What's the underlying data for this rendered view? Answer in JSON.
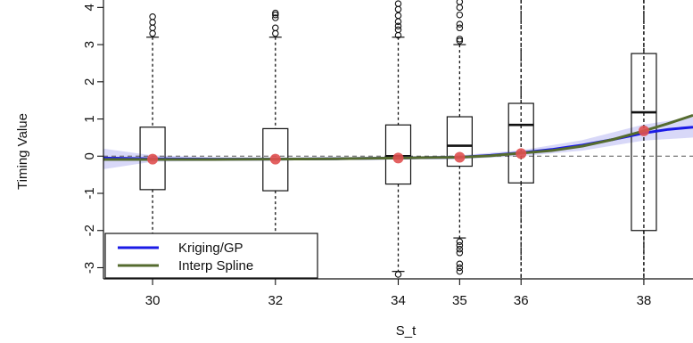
{
  "chart_data": {
    "type": "boxplot",
    "xlabel": "S_t",
    "ylabel": "Timing Value",
    "xlim": [
      29.2,
      38.8
    ],
    "ylim": [
      -3.3,
      4.2
    ],
    "x_ticks": [
      30,
      32,
      34,
      35,
      36,
      38
    ],
    "y_ticks": [
      -3,
      -2,
      -1,
      0,
      1,
      2,
      3,
      4
    ],
    "reference_line_y": 0,
    "vertical_reference_lines_x": [
      36,
      38
    ],
    "boxes": [
      {
        "x": 30,
        "q1": -0.9,
        "median": -0.08,
        "q3": 0.78,
        "whisker_low": -3.3,
        "whisker_high": 3.2,
        "outliers_high": [
          3.3,
          3.45,
          3.6,
          3.75
        ],
        "outliers_low": []
      },
      {
        "x": 32,
        "q1": -0.93,
        "median": -0.08,
        "q3": 0.74,
        "whisker_low": -3.3,
        "whisker_high": 3.2,
        "outliers_high": [
          3.3,
          3.45,
          3.72,
          3.8,
          3.85
        ],
        "outliers_low": []
      },
      {
        "x": 34,
        "q1": -0.75,
        "median": 0.0,
        "q3": 0.84,
        "whisker_low": -3.1,
        "whisker_high": 3.2,
        "outliers_high": [
          3.25,
          3.4,
          3.5,
          3.62,
          3.78,
          3.95,
          4.1
        ],
        "outliers_low": [
          -3.18
        ]
      },
      {
        "x": 35,
        "q1": -0.27,
        "median": 0.28,
        "q3": 1.06,
        "whisker_low": -2.2,
        "whisker_high": 3.0,
        "outliers_high": [
          3.1,
          3.15,
          3.45,
          3.55,
          3.8,
          4.0,
          4.15
        ],
        "outliers_low": [
          -2.3,
          -2.4,
          -2.5,
          -2.6,
          -2.9,
          -3.0,
          -3.1
        ]
      },
      {
        "x": 36,
        "q1": -0.72,
        "median": 0.84,
        "q3": 1.42,
        "whisker_low": -3.3,
        "whisker_high": 4.2,
        "outliers_high": [],
        "outliers_low": []
      },
      {
        "x": 38,
        "q1": -2.0,
        "median": 1.18,
        "q3": 2.76,
        "whisker_low": -3.3,
        "whisker_high": 4.2,
        "outliers_high": [],
        "outliers_low": []
      }
    ],
    "points": {
      "x": [
        30,
        32,
        34,
        35,
        36,
        38
      ],
      "y": [
        -0.08,
        -0.08,
        -0.05,
        -0.03,
        0.07,
        0.68
      ]
    },
    "series": [
      {
        "name": "Kriging/GP",
        "color": "#1a1ae6",
        "x": [
          29.2,
          30,
          31,
          32,
          33,
          34,
          34.5,
          35,
          35.5,
          36,
          36.5,
          37,
          37.5,
          38,
          38.4,
          38.8
        ],
        "y": [
          -0.05,
          -0.07,
          -0.08,
          -0.08,
          -0.07,
          -0.05,
          -0.04,
          -0.03,
          0.02,
          0.09,
          0.18,
          0.3,
          0.45,
          0.62,
          0.72,
          0.78
        ]
      },
      {
        "name": "Interp Spline",
        "color": "#556b2f",
        "x": [
          29.2,
          30,
          31,
          32,
          33,
          34,
          34.5,
          35,
          35.5,
          36,
          36.5,
          37,
          37.5,
          38,
          38.4,
          38.8
        ],
        "y": [
          -0.09,
          -0.09,
          -0.09,
          -0.08,
          -0.07,
          -0.05,
          -0.04,
          -0.03,
          0.01,
          0.08,
          0.15,
          0.27,
          0.45,
          0.68,
          0.88,
          1.1
        ]
      }
    ],
    "confidence_band": {
      "color": "#c8c8f5",
      "x": [
        29.2,
        30,
        31,
        32,
        33,
        34,
        35,
        36,
        37,
        38,
        38.8
      ],
      "lower": [
        -0.35,
        -0.15,
        -0.13,
        -0.12,
        -0.1,
        -0.09,
        -0.08,
        0.0,
        0.15,
        0.42,
        0.5
      ],
      "upper": [
        0.2,
        0.02,
        -0.03,
        -0.03,
        -0.02,
        -0.01,
        0.02,
        0.16,
        0.43,
        0.85,
        1.05
      ]
    },
    "legend": {
      "position": "bottom-left",
      "entries": [
        "Kriging/GP",
        "Interp Spline"
      ]
    },
    "point_color": "#e05050"
  }
}
